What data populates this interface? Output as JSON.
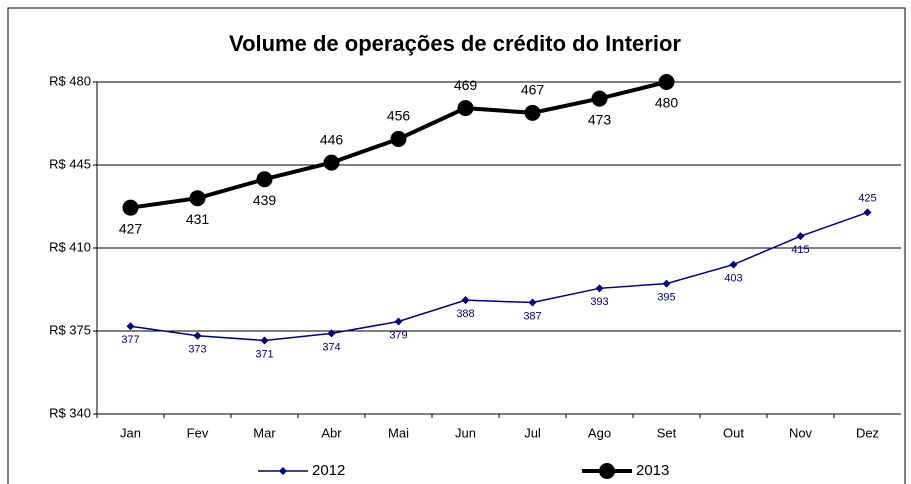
{
  "chart_data": {
    "type": "line",
    "title": "Volume de operações de crédito do Interior",
    "categories": [
      "Jan",
      "Fev",
      "Mar",
      "Abr",
      "Mai",
      "Jun",
      "Jul",
      "Ago",
      "Set",
      "Out",
      "Nov",
      "Dez"
    ],
    "series": [
      {
        "name": "2012",
        "color": "#000080",
        "values": [
          377,
          373,
          371,
          374,
          379,
          388,
          387,
          393,
          395,
          403,
          415,
          425
        ]
      },
      {
        "name": "2013",
        "color": "#000000",
        "values": [
          427,
          431,
          439,
          446,
          456,
          469,
          467,
          473,
          480,
          null,
          null,
          null
        ]
      }
    ],
    "ylim": [
      340,
      480
    ],
    "yticks": [
      {
        "value": 340,
        "label": "R$ 340"
      },
      {
        "value": 375,
        "label": "R$ 375"
      },
      {
        "value": 410,
        "label": "R$ 410"
      },
      {
        "value": 445,
        "label": "R$ 445"
      },
      {
        "value": 480,
        "label": "R$ 480"
      }
    ],
    "grid": true,
    "legend": "bottom"
  }
}
